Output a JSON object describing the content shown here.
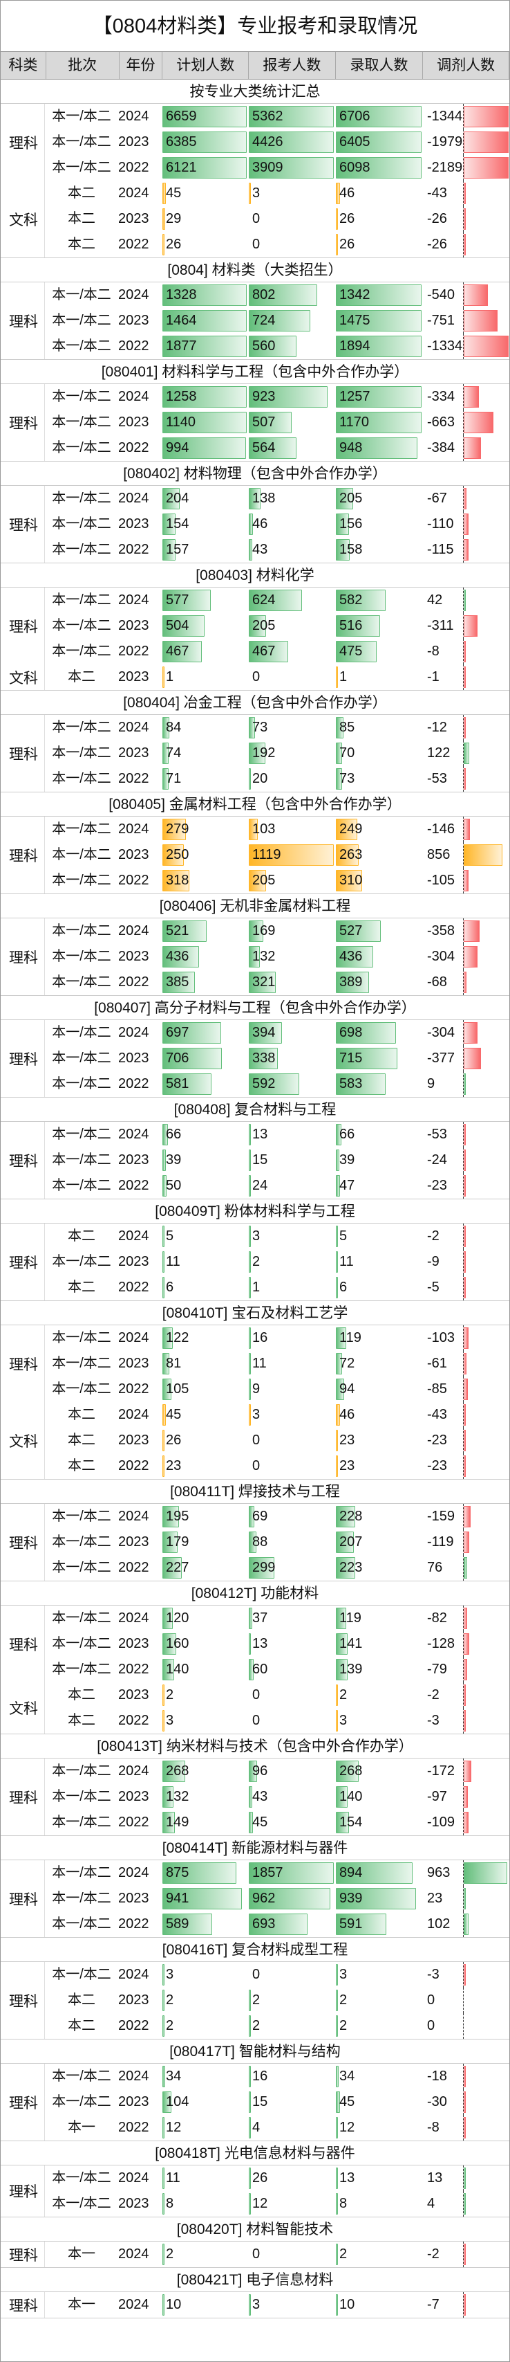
{
  "title": "【0804材料类】专业报考和录取情况",
  "headers": [
    "科类",
    "批次",
    "年份",
    "计划人数",
    "报考人数",
    "录取人数",
    "调剂人数"
  ],
  "scale_max": 1000,
  "colors": {
    "green": "#63be7b",
    "orange": "#ffb628",
    "red": "#f8696b"
  },
  "sections": [
    {
      "title": "按专业大类统计汇总",
      "groups": [
        {
          "subject": "理科",
          "rows": [
            {
              "batch": "本一/本二",
              "year": "2024",
              "plan": 6659,
              "apply": 5362,
              "admit": 6706,
              "adjust": -1344
            },
            {
              "batch": "本一/本二",
              "year": "2023",
              "plan": 6385,
              "apply": 4426,
              "admit": 6405,
              "adjust": -1979
            },
            {
              "batch": "本一/本二",
              "year": "2022",
              "plan": 6121,
              "apply": 3909,
              "admit": 6098,
              "adjust": -2189
            }
          ]
        },
        {
          "subject": "文科",
          "rows": [
            {
              "batch": "本二",
              "year": "2024",
              "plan": 45,
              "apply": 3,
              "admit": 46,
              "adjust": -43,
              "orange": true
            },
            {
              "batch": "本二",
              "year": "2023",
              "plan": 29,
              "apply": 0,
              "admit": 26,
              "adjust": -26,
              "orange": true
            },
            {
              "batch": "本二",
              "year": "2022",
              "plan": 26,
              "apply": 0,
              "admit": 26,
              "adjust": -26,
              "orange": true
            }
          ]
        }
      ]
    },
    {
      "title": "[0804] 材料类（大类招生）",
      "groups": [
        {
          "subject": "理科",
          "rows": [
            {
              "batch": "本一/本二",
              "year": "2024",
              "plan": 1328,
              "apply": 802,
              "admit": 1342,
              "adjust": -540
            },
            {
              "batch": "本一/本二",
              "year": "2023",
              "plan": 1464,
              "apply": 724,
              "admit": 1475,
              "adjust": -751
            },
            {
              "batch": "本一/本二",
              "year": "2022",
              "plan": 1877,
              "apply": 560,
              "admit": 1894,
              "adjust": -1334
            }
          ]
        }
      ]
    },
    {
      "title": "[080401] 材料科学与工程（包含中外合作办学）",
      "groups": [
        {
          "subject": "理科",
          "rows": [
            {
              "batch": "本一/本二",
              "year": "2024",
              "plan": 1258,
              "apply": 923,
              "admit": 1257,
              "adjust": -334
            },
            {
              "batch": "本一/本二",
              "year": "2023",
              "plan": 1140,
              "apply": 507,
              "admit": 1170,
              "adjust": -663
            },
            {
              "batch": "本一/本二",
              "year": "2022",
              "plan": 994,
              "apply": 564,
              "admit": 948,
              "adjust": -384
            }
          ]
        }
      ]
    },
    {
      "title": "[080402] 材料物理（包含中外合作办学）",
      "groups": [
        {
          "subject": "理科",
          "rows": [
            {
              "batch": "本一/本二",
              "year": "2024",
              "plan": 204,
              "apply": 138,
              "admit": 205,
              "adjust": -67
            },
            {
              "batch": "本一/本二",
              "year": "2023",
              "plan": 154,
              "apply": 46,
              "admit": 156,
              "adjust": -110
            },
            {
              "batch": "本一/本二",
              "year": "2022",
              "plan": 157,
              "apply": 43,
              "admit": 158,
              "adjust": -115
            }
          ]
        }
      ]
    },
    {
      "title": "[080403] 材料化学",
      "groups": [
        {
          "subject": "理科",
          "rows": [
            {
              "batch": "本一/本二",
              "year": "2024",
              "plan": 577,
              "apply": 624,
              "admit": 582,
              "adjust": 42
            },
            {
              "batch": "本一/本二",
              "year": "2023",
              "plan": 504,
              "apply": 205,
              "admit": 516,
              "adjust": -311
            },
            {
              "batch": "本一/本二",
              "year": "2022",
              "plan": 467,
              "apply": 467,
              "admit": 475,
              "adjust": -8
            }
          ]
        },
        {
          "subject": "文科",
          "rows": [
            {
              "batch": "本二",
              "year": "2023",
              "plan": 1,
              "apply": 0,
              "admit": 1,
              "adjust": -1,
              "orange": true
            }
          ]
        }
      ]
    },
    {
      "title": "[080404] 冶金工程（包含中外合作办学）",
      "groups": [
        {
          "subject": "理科",
          "rows": [
            {
              "batch": "本一/本二",
              "year": "2024",
              "plan": 84,
              "apply": 73,
              "admit": 85,
              "adjust": -12
            },
            {
              "batch": "本一/本二",
              "year": "2023",
              "plan": 74,
              "apply": 192,
              "admit": 70,
              "adjust": 122
            },
            {
              "batch": "本一/本二",
              "year": "2022",
              "plan": 71,
              "apply": 20,
              "admit": 73,
              "adjust": -53
            }
          ]
        }
      ]
    },
    {
      "title": "[080405] 金属材料工程（包含中外合作办学）",
      "groups": [
        {
          "subject": "理科",
          "rows": [
            {
              "batch": "本一/本二",
              "year": "2024",
              "plan": 279,
              "apply": 103,
              "admit": 249,
              "adjust": -146,
              "orange": true
            },
            {
              "batch": "本一/本二",
              "year": "2023",
              "plan": 250,
              "apply": 1119,
              "admit": 263,
              "adjust": 856,
              "orange": true
            },
            {
              "batch": "本一/本二",
              "year": "2022",
              "plan": 318,
              "apply": 205,
              "admit": 310,
              "adjust": -105,
              "orange": true
            }
          ]
        }
      ]
    },
    {
      "title": "[080406] 无机非金属材料工程",
      "groups": [
        {
          "subject": "理科",
          "rows": [
            {
              "batch": "本一/本二",
              "year": "2024",
              "plan": 521,
              "apply": 169,
              "admit": 527,
              "adjust": -358
            },
            {
              "batch": "本一/本二",
              "year": "2023",
              "plan": 436,
              "apply": 132,
              "admit": 436,
              "adjust": -304
            },
            {
              "batch": "本一/本二",
              "year": "2022",
              "plan": 385,
              "apply": 321,
              "admit": 389,
              "adjust": -68
            }
          ]
        }
      ]
    },
    {
      "title": "[080407] 高分子材料与工程（包含中外合作办学）",
      "groups": [
        {
          "subject": "理科",
          "rows": [
            {
              "batch": "本一/本二",
              "year": "2024",
              "plan": 697,
              "apply": 394,
              "admit": 698,
              "adjust": -304
            },
            {
              "batch": "本一/本二",
              "year": "2023",
              "plan": 706,
              "apply": 338,
              "admit": 715,
              "adjust": -377
            },
            {
              "batch": "本一/本二",
              "year": "2022",
              "plan": 581,
              "apply": 592,
              "admit": 583,
              "adjust": 9
            }
          ]
        }
      ]
    },
    {
      "title": "[080408] 复合材料与工程",
      "groups": [
        {
          "subject": "理科",
          "rows": [
            {
              "batch": "本一/本二",
              "year": "2024",
              "plan": 66,
              "apply": 13,
              "admit": 66,
              "adjust": -53
            },
            {
              "batch": "本一/本二",
              "year": "2023",
              "plan": 39,
              "apply": 15,
              "admit": 39,
              "adjust": -24
            },
            {
              "batch": "本一/本二",
              "year": "2022",
              "plan": 50,
              "apply": 24,
              "admit": 47,
              "adjust": -23
            }
          ]
        }
      ]
    },
    {
      "title": "[080409T] 粉体材料科学与工程",
      "groups": [
        {
          "subject": "理科",
          "rows": [
            {
              "batch": "本二",
              "year": "2024",
              "plan": 5,
              "apply": 3,
              "admit": 5,
              "adjust": -2
            },
            {
              "batch": "本一/本二",
              "year": "2023",
              "plan": 11,
              "apply": 2,
              "admit": 11,
              "adjust": -9
            },
            {
              "batch": "本二",
              "year": "2022",
              "plan": 6,
              "apply": 1,
              "admit": 6,
              "adjust": -5
            }
          ]
        }
      ]
    },
    {
      "title": "[080410T] 宝石及材料工艺学",
      "groups": [
        {
          "subject": "理科",
          "rows": [
            {
              "batch": "本一/本二",
              "year": "2024",
              "plan": 122,
              "apply": 16,
              "admit": 119,
              "adjust": -103
            },
            {
              "batch": "本一/本二",
              "year": "2023",
              "plan": 81,
              "apply": 11,
              "admit": 72,
              "adjust": -61
            },
            {
              "batch": "本一/本二",
              "year": "2022",
              "plan": 105,
              "apply": 9,
              "admit": 94,
              "adjust": -85
            }
          ]
        },
        {
          "subject": "文科",
          "rows": [
            {
              "batch": "本二",
              "year": "2024",
              "plan": 45,
              "apply": 3,
              "admit": 46,
              "adjust": -43,
              "orange": true
            },
            {
              "batch": "本二",
              "year": "2023",
              "plan": 26,
              "apply": 0,
              "admit": 23,
              "adjust": -23,
              "orange": true
            },
            {
              "batch": "本二",
              "year": "2022",
              "plan": 23,
              "apply": 0,
              "admit": 23,
              "adjust": -23,
              "orange": true
            }
          ]
        }
      ]
    },
    {
      "title": "[080411T] 焊接技术与工程",
      "groups": [
        {
          "subject": "理科",
          "rows": [
            {
              "batch": "本一/本二",
              "year": "2024",
              "plan": 195,
              "apply": 69,
              "admit": 228,
              "adjust": -159
            },
            {
              "batch": "本一/本二",
              "year": "2023",
              "plan": 179,
              "apply": 88,
              "admit": 207,
              "adjust": -119
            },
            {
              "batch": "本一/本二",
              "year": "2022",
              "plan": 227,
              "apply": 299,
              "admit": 223,
              "adjust": 76
            }
          ]
        }
      ]
    },
    {
      "title": "[080412T] 功能材料",
      "groups": [
        {
          "subject": "理科",
          "rows": [
            {
              "batch": "本一/本二",
              "year": "2024",
              "plan": 120,
              "apply": 37,
              "admit": 119,
              "adjust": -82
            },
            {
              "batch": "本一/本二",
              "year": "2023",
              "plan": 160,
              "apply": 13,
              "admit": 141,
              "adjust": -128
            },
            {
              "batch": "本一/本二",
              "year": "2022",
              "plan": 140,
              "apply": 60,
              "admit": 139,
              "adjust": -79
            }
          ]
        },
        {
          "subject": "文科",
          "rows": [
            {
              "batch": "本二",
              "year": "2023",
              "plan": 2,
              "apply": 0,
              "admit": 2,
              "adjust": -2,
              "orange": true
            },
            {
              "batch": "本二",
              "year": "2022",
              "plan": 3,
              "apply": 0,
              "admit": 3,
              "adjust": -3,
              "orange": true
            }
          ]
        }
      ]
    },
    {
      "title": "[080413T] 纳米材料与技术（包含中外合作办学）",
      "groups": [
        {
          "subject": "理科",
          "rows": [
            {
              "batch": "本一/本二",
              "year": "2024",
              "plan": 268,
              "apply": 96,
              "admit": 268,
              "adjust": -172
            },
            {
              "batch": "本一/本二",
              "year": "2023",
              "plan": 132,
              "apply": 43,
              "admit": 140,
              "adjust": -97
            },
            {
              "batch": "本一/本二",
              "year": "2022",
              "plan": 149,
              "apply": 45,
              "admit": 154,
              "adjust": -109
            }
          ]
        }
      ]
    },
    {
      "title": "[080414T] 新能源材料与器件",
      "groups": [
        {
          "subject": "理科",
          "rows": [
            {
              "batch": "本一/本二",
              "year": "2024",
              "plan": 875,
              "apply": 1857,
              "admit": 894,
              "adjust": 963
            },
            {
              "batch": "本一/本二",
              "year": "2023",
              "plan": 941,
              "apply": 962,
              "admit": 939,
              "adjust": 23
            },
            {
              "batch": "本一/本二",
              "year": "2022",
              "plan": 589,
              "apply": 693,
              "admit": 591,
              "adjust": 102
            }
          ]
        }
      ]
    },
    {
      "title": "[080416T] 复合材料成型工程",
      "groups": [
        {
          "subject": "理科",
          "rows": [
            {
              "batch": "本一/本二",
              "year": "2024",
              "plan": 3,
              "apply": 0,
              "admit": 3,
              "adjust": -3
            },
            {
              "batch": "本二",
              "year": "2023",
              "plan": 2,
              "apply": 2,
              "admit": 2,
              "adjust": 0
            },
            {
              "batch": "本二",
              "year": "2022",
              "plan": 2,
              "apply": 2,
              "admit": 2,
              "adjust": 0
            }
          ]
        }
      ]
    },
    {
      "title": "[080417T] 智能材料与结构",
      "groups": [
        {
          "subject": "理科",
          "rows": [
            {
              "batch": "本一/本二",
              "year": "2024",
              "plan": 34,
              "apply": 16,
              "admit": 34,
              "adjust": -18
            },
            {
              "batch": "本一/本二",
              "year": "2023",
              "plan": 104,
              "apply": 15,
              "admit": 45,
              "adjust": -30
            },
            {
              "batch": "本一",
              "year": "2022",
              "plan": 12,
              "apply": 4,
              "admit": 12,
              "adjust": -8
            }
          ]
        }
      ]
    },
    {
      "title": "[080418T] 光电信息材料与器件",
      "groups": [
        {
          "subject": "理科",
          "rows": [
            {
              "batch": "本一/本二",
              "year": "2024",
              "plan": 11,
              "apply": 26,
              "admit": 13,
              "adjust": 13
            },
            {
              "batch": "本一/本二",
              "year": "2023",
              "plan": 8,
              "apply": 12,
              "admit": 8,
              "adjust": 4
            }
          ]
        }
      ]
    },
    {
      "title": "[080420T] 材料智能技术",
      "groups": [
        {
          "subject": "理科",
          "rows": [
            {
              "batch": "本一",
              "year": "2024",
              "plan": 2,
              "apply": 0,
              "admit": 2,
              "adjust": -2
            }
          ]
        }
      ]
    },
    {
      "title": "[080421T] 电子信息材料",
      "groups": [
        {
          "subject": "理科",
          "rows": [
            {
              "batch": "本一",
              "year": "2024",
              "plan": 10,
              "apply": 3,
              "admit": 10,
              "adjust": -7
            }
          ]
        }
      ]
    }
  ]
}
